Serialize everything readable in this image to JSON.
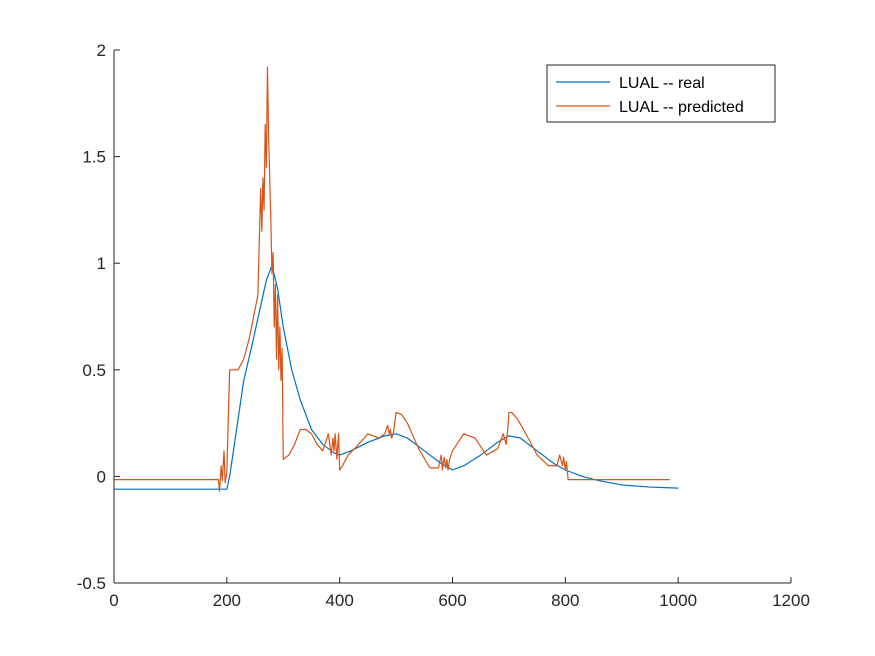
{
  "chart_data": {
    "type": "line",
    "title": "",
    "xlabel": "",
    "ylabel": "",
    "xlim": [
      0,
      1200
    ],
    "ylim": [
      -0.5,
      2
    ],
    "xticks": [
      0,
      200,
      400,
      600,
      800,
      1000,
      1200
    ],
    "yticks": [
      -0.5,
      0,
      0.5,
      1,
      1.5,
      2
    ],
    "xtick_labels": [
      "0",
      "200",
      "400",
      "600",
      "800",
      "1000",
      "1200"
    ],
    "ytick_labels": [
      "-0.5",
      "0",
      "0.5",
      "1",
      "1.5",
      "2"
    ],
    "grid": false,
    "legend": {
      "position": "top-right"
    },
    "series": [
      {
        "name": "LUAL -- real",
        "color": "#0072BD",
        "x": [
          0,
          200,
          205,
          215,
          230,
          245,
          260,
          270,
          280,
          290,
          300,
          315,
          330,
          350,
          370,
          390,
          400,
          420,
          450,
          480,
          500,
          520,
          550,
          580,
          600,
          620,
          650,
          680,
          700,
          720,
          750,
          780,
          800,
          830,
          860,
          900,
          950,
          1000
        ],
        "y": [
          -0.06,
          -0.06,
          0.0,
          0.18,
          0.45,
          0.62,
          0.8,
          0.92,
          0.99,
          0.88,
          0.7,
          0.5,
          0.36,
          0.22,
          0.15,
          0.11,
          0.1,
          0.12,
          0.16,
          0.19,
          0.2,
          0.18,
          0.12,
          0.06,
          0.03,
          0.05,
          0.1,
          0.16,
          0.19,
          0.18,
          0.12,
          0.06,
          0.03,
          0.0,
          -0.02,
          -0.04,
          -0.05,
          -0.055
        ]
      },
      {
        "name": "LUAL -- predicted",
        "color": "#D95319",
        "x": [
          0,
          185,
          187,
          190,
          192,
          195,
          197,
          200,
          205,
          210,
          220,
          230,
          240,
          255,
          260,
          262,
          264,
          266,
          268,
          270,
          272,
          274,
          276,
          278,
          280,
          282,
          284,
          286,
          288,
          290,
          292,
          294,
          296,
          298,
          300,
          310,
          320,
          330,
          340,
          350,
          360,
          370,
          380,
          385,
          388,
          390,
          392,
          395,
          398,
          400,
          405,
          415,
          430,
          450,
          470,
          480,
          485,
          488,
          490,
          492,
          495,
          500,
          510,
          520,
          540,
          560,
          575,
          580,
          582,
          585,
          588,
          590,
          592,
          595,
          600,
          610,
          620,
          640,
          660,
          680,
          690,
          695,
          698,
          700,
          705,
          715,
          730,
          750,
          770,
          785,
          790,
          795,
          797,
          800,
          802,
          805,
          810,
          850,
          900,
          950,
          985
        ],
        "y": [
          -0.015,
          -0.015,
          -0.07,
          0.05,
          -0.02,
          0.12,
          -0.03,
          0.02,
          0.5,
          0.5,
          0.5,
          0.55,
          0.65,
          0.85,
          1.35,
          1.15,
          1.4,
          1.25,
          1.65,
          1.45,
          1.92,
          1.6,
          1.4,
          1.2,
          0.95,
          1.05,
          0.7,
          0.9,
          0.55,
          0.85,
          0.5,
          0.7,
          0.45,
          0.6,
          0.08,
          0.1,
          0.15,
          0.22,
          0.22,
          0.2,
          0.15,
          0.12,
          0.2,
          0.1,
          0.18,
          0.12,
          0.2,
          0.08,
          0.2,
          0.03,
          0.05,
          0.1,
          0.14,
          0.2,
          0.18,
          0.2,
          0.24,
          0.2,
          0.22,
          0.18,
          0.2,
          0.3,
          0.29,
          0.25,
          0.13,
          0.04,
          0.04,
          0.1,
          0.03,
          0.09,
          0.04,
          0.08,
          0.03,
          0.08,
          0.12,
          0.16,
          0.2,
          0.18,
          0.1,
          0.13,
          0.2,
          0.15,
          0.22,
          0.3,
          0.3,
          0.27,
          0.2,
          0.1,
          0.05,
          0.05,
          0.1,
          0.05,
          0.09,
          0.03,
          0.07,
          -0.015,
          -0.015,
          -0.015,
          -0.015,
          -0.015,
          -0.015
        ]
      }
    ]
  }
}
